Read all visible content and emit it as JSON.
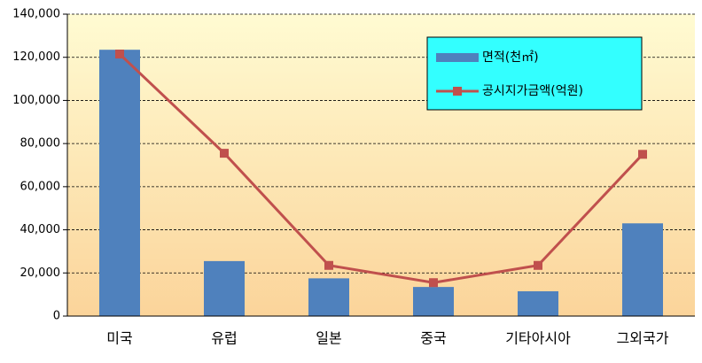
{
  "chart_data": {
    "type": "bar",
    "categories": [
      "미국",
      "유럽",
      "일본",
      "중국",
      "기타아시아",
      "그외국가"
    ],
    "series": [
      {
        "name": "면적(천㎡)",
        "type": "bar",
        "color": "#4f81bd",
        "values": [
          123500,
          25500,
          17500,
          13500,
          11500,
          43000
        ]
      },
      {
        "name": "공시지가금액(억원)",
        "type": "line",
        "color": "#c0504d",
        "values": [
          121500,
          75500,
          23500,
          15500,
          23500,
          75000
        ]
      }
    ],
    "ylim": [
      0,
      140000
    ],
    "yticks": [
      0,
      {
        "value": 20000,
        "label": "20,000"
      },
      {
        "value": 40000,
        "label": "40,000"
      },
      {
        "value": 60000,
        "label": "60,000"
      },
      {
        "value": 80000,
        "label": "80,000"
      },
      {
        "value": 100000,
        "label": "100,000"
      },
      {
        "value": 120000,
        "label": "120,000"
      },
      {
        "value": 140000,
        "label": "140,000"
      }
    ],
    "grid": true
  }
}
